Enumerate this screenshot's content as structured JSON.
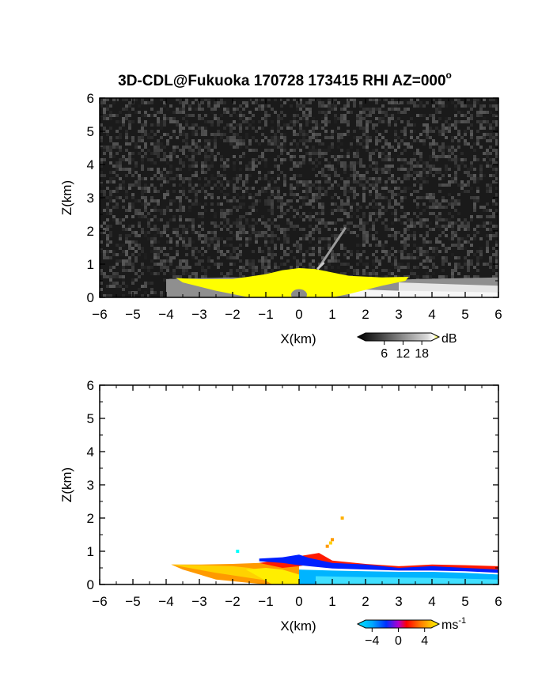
{
  "chart_data": [
    {
      "type": "heatmap",
      "panel": "reflectivity",
      "title": "3D-CDL@Fukuoka 170728 173415 RHI AZ=000",
      "title_superscript": "o",
      "xlabel": "X(km)",
      "ylabel": "Z(km)",
      "xlim": [
        -6,
        6
      ],
      "ylim": [
        0,
        6
      ],
      "xticks": [
        "-6",
        "-5",
        "-4",
        "-3",
        "-2",
        "-1",
        "0",
        "1",
        "2",
        "3",
        "4",
        "5",
        "6"
      ],
      "yticks": [
        "0",
        "1",
        "2",
        "3",
        "4",
        "5",
        "6"
      ],
      "colorbar": {
        "label": "dB",
        "ticks": [
          "6",
          "12",
          "18"
        ],
        "range": [
          0,
          21
        ]
      },
      "background": "noise",
      "features": [
        {
          "name": "yellow echo layer",
          "x_range": [
            -3.7,
            3.3
          ],
          "z_range": [
            0,
            0.9
          ],
          "value": "above 18 dB"
        },
        {
          "name": "grey echo layer",
          "x_range": [
            -4,
            6
          ],
          "z_range": [
            0,
            0.6
          ],
          "value": "8-16 dB"
        },
        {
          "name": "echo streak",
          "x_range": [
            0.6,
            1.4
          ],
          "z_range": [
            0.9,
            2.1
          ],
          "value": "approx 10 dB"
        }
      ]
    },
    {
      "type": "heatmap",
      "panel": "doppler_velocity",
      "xlabel": "X(km)",
      "ylabel": "Z(km)",
      "xlim": [
        -6,
        6
      ],
      "ylim": [
        0,
        6
      ],
      "xticks": [
        "-6",
        "-5",
        "-4",
        "-3",
        "-2",
        "-1",
        "0",
        "1",
        "2",
        "3",
        "4",
        "5",
        "6"
      ],
      "yticks": [
        "0",
        "1",
        "2",
        "3",
        "4",
        "5",
        "6"
      ],
      "colorbar": {
        "label": "ms",
        "label_superscript": "-1",
        "ticks": [
          "-4",
          "0",
          "4"
        ],
        "range": [
          -5,
          5
        ]
      },
      "features": [
        {
          "name": "positive velocity region",
          "x_range": [
            -3.8,
            0
          ],
          "z_range": [
            0,
            0.6
          ],
          "value_ms": 3
        },
        {
          "name": "negative velocity region",
          "x_range": [
            0,
            6
          ],
          "z_range": [
            0,
            0.5
          ],
          "value_ms": -3
        },
        {
          "name": "blue upper edge",
          "x_range": [
            -1.2,
            6
          ],
          "z_range": [
            0.5,
            0.85
          ],
          "value_ms": -5
        },
        {
          "name": "red shear layer",
          "x_range": [
            -0.8,
            6
          ],
          "z_range": [
            0.4,
            0.9
          ],
          "value_ms": 1.5
        }
      ]
    }
  ]
}
